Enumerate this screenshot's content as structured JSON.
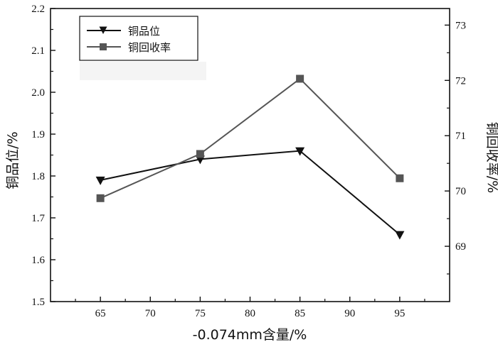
{
  "chart_data": {
    "type": "line",
    "x": [
      65,
      75,
      85,
      95
    ],
    "xlim": [
      60,
      100
    ],
    "xticks": [
      65,
      70,
      75,
      80,
      85,
      90,
      95
    ],
    "xlabel": "-0.074mm含量/%",
    "ylabel_left": "铜品位/%",
    "ylabel_right": "铜回收率/%",
    "ylim_left": [
      1.5,
      2.2
    ],
    "ylim_right": [
      68,
      73.3
    ],
    "yticks_left": [
      "1.5",
      "1.6",
      "1.7",
      "1.8",
      "1.9",
      "2.0",
      "2.1",
      "2.2"
    ],
    "yticks_right": [
      "69",
      "70",
      "71",
      "72",
      "73"
    ],
    "series": [
      {
        "name": "铜品位",
        "axis": "left",
        "marker": "triangle-down",
        "color": "#111111",
        "values": [
          1.79,
          1.84,
          1.86,
          1.66
        ]
      },
      {
        "name": "铜回收率",
        "axis": "right",
        "marker": "square",
        "color": "#555555",
        "values": [
          69.87,
          70.67,
          72.03,
          70.23
        ]
      }
    ],
    "legend_position": "top-left",
    "grid": false
  }
}
